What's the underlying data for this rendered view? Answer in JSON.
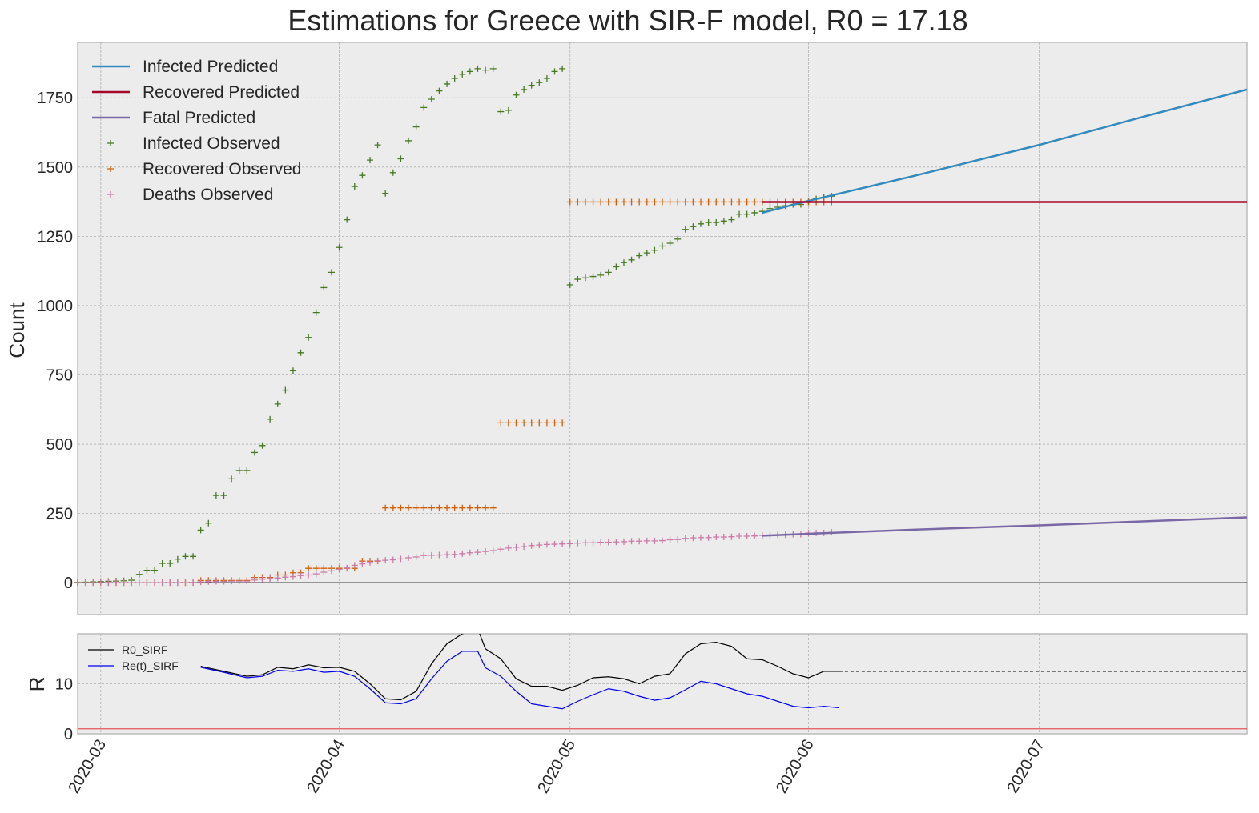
{
  "chart_data": [
    {
      "type": "line",
      "title": "Estimations for Greece with SIR-F model, R0 = 17.18",
      "xlabel": "",
      "ylabel": "Count",
      "xlim": [
        "2020-02-27",
        "2020-07-28"
      ],
      "ylim": [
        -115,
        1950
      ],
      "grid": true,
      "legend_position": "top-left",
      "yticks": [
        "0",
        "250",
        "500",
        "750",
        "1000",
        "1250",
        "1500",
        "1750"
      ],
      "xticks": [
        "2020-03",
        "2020-04",
        "2020-05",
        "2020-06",
        "2020-07"
      ],
      "colors": {
        "infected_pred": "#348abd",
        "recovered_pred": "#a60628",
        "fatal_pred": "#7a68a6",
        "infected_obs": "#467821",
        "recovered_obs": "#d55e00",
        "deaths_obs": "#cc79a7",
        "background": "#ececec",
        "grid": "#b0b0b0"
      },
      "legend": [
        "Infected Predicted",
        "Recovered Predicted",
        "Fatal Predicted",
        "Infected Observed",
        "Recovered Observed",
        "Deaths Observed"
      ],
      "series": [
        {
          "name": "Infected Predicted",
          "style": "line",
          "x": [
            "2020-05-26",
            "2020-06-01",
            "2020-06-15",
            "2020-07-01",
            "2020-07-15",
            "2020-07-28"
          ],
          "y": [
            1335,
            1378,
            1470,
            1580,
            1685,
            1780
          ]
        },
        {
          "name": "Recovered Predicted",
          "style": "line",
          "x": [
            "2020-05-26",
            "2020-07-28"
          ],
          "y": [
            1374,
            1374
          ]
        },
        {
          "name": "Fatal Predicted",
          "style": "line",
          "x": [
            "2020-05-26",
            "2020-06-15",
            "2020-07-01",
            "2020-07-28"
          ],
          "y": [
            170,
            192,
            207,
            236
          ]
        },
        {
          "name": "Infected Observed",
          "style": "marker",
          "x": [
            "2020-02-27",
            "2020-02-28",
            "2020-02-29",
            "2020-03-01",
            "2020-03-02",
            "2020-03-03",
            "2020-03-04",
            "2020-03-05",
            "2020-03-06",
            "2020-03-07",
            "2020-03-08",
            "2020-03-09",
            "2020-03-10",
            "2020-03-11",
            "2020-03-12",
            "2020-03-13",
            "2020-03-14",
            "2020-03-15",
            "2020-03-16",
            "2020-03-17",
            "2020-03-18",
            "2020-03-19",
            "2020-03-20",
            "2020-03-21",
            "2020-03-22",
            "2020-03-23",
            "2020-03-24",
            "2020-03-25",
            "2020-03-26",
            "2020-03-27",
            "2020-03-28",
            "2020-03-29",
            "2020-03-30",
            "2020-03-31",
            "2020-04-01",
            "2020-04-02",
            "2020-04-03",
            "2020-04-04",
            "2020-04-05",
            "2020-04-06",
            "2020-04-07",
            "2020-04-08",
            "2020-04-09",
            "2020-04-10",
            "2020-04-11",
            "2020-04-12",
            "2020-04-13",
            "2020-04-14",
            "2020-04-15",
            "2020-04-16",
            "2020-04-17",
            "2020-04-18",
            "2020-04-19",
            "2020-04-20",
            "2020-04-21",
            "2020-04-22",
            "2020-04-23",
            "2020-04-24",
            "2020-04-25",
            "2020-04-26",
            "2020-04-27",
            "2020-04-28",
            "2020-04-29",
            "2020-04-30",
            "2020-05-01",
            "2020-05-02",
            "2020-05-03",
            "2020-05-04",
            "2020-05-05",
            "2020-05-06",
            "2020-05-07",
            "2020-05-08",
            "2020-05-09",
            "2020-05-10",
            "2020-05-11",
            "2020-05-12",
            "2020-05-13",
            "2020-05-14",
            "2020-05-15",
            "2020-05-16",
            "2020-05-17",
            "2020-05-18",
            "2020-05-19",
            "2020-05-20",
            "2020-05-21",
            "2020-05-22",
            "2020-05-23",
            "2020-05-24",
            "2020-05-25",
            "2020-05-26",
            "2020-05-27",
            "2020-05-28",
            "2020-05-29",
            "2020-05-30",
            "2020-05-31",
            "2020-06-01",
            "2020-06-02",
            "2020-06-03",
            "2020-06-04"
          ],
          "y": [
            1,
            2,
            3,
            4,
            5,
            6,
            7,
            9,
            30,
            45,
            45,
            70,
            70,
            85,
            95,
            95,
            190,
            215,
            315,
            315,
            375,
            405,
            405,
            470,
            495,
            590,
            645,
            695,
            765,
            830,
            885,
            975,
            1065,
            1120,
            1210,
            1310,
            1430,
            1470,
            1525,
            1580,
            1405,
            1480,
            1530,
            1595,
            1645,
            1715,
            1745,
            1775,
            1800,
            1820,
            1835,
            1845,
            1855,
            1850,
            1855,
            1700,
            1705,
            1760,
            1780,
            1795,
            1805,
            1820,
            1845,
            1855,
            1075,
            1095,
            1100,
            1105,
            1110,
            1120,
            1140,
            1155,
            1165,
            1180,
            1190,
            1200,
            1215,
            1225,
            1240,
            1275,
            1285,
            1295,
            1300,
            1300,
            1305,
            1310,
            1330,
            1330,
            1335,
            1340,
            1350,
            1355,
            1360,
            1365,
            1365,
            1375,
            1385,
            1390,
            1395
          ]
        },
        {
          "name": "Recovered Observed",
          "style": "marker",
          "x": [
            "2020-02-27",
            "2020-02-28",
            "2020-02-29",
            "2020-03-01",
            "2020-03-02",
            "2020-03-03",
            "2020-03-04",
            "2020-03-05",
            "2020-03-06",
            "2020-03-07",
            "2020-03-08",
            "2020-03-09",
            "2020-03-10",
            "2020-03-11",
            "2020-03-12",
            "2020-03-13",
            "2020-03-14",
            "2020-03-15",
            "2020-03-16",
            "2020-03-17",
            "2020-03-18",
            "2020-03-19",
            "2020-03-20",
            "2020-03-21",
            "2020-03-22",
            "2020-03-23",
            "2020-03-24",
            "2020-03-25",
            "2020-03-26",
            "2020-03-27",
            "2020-03-28",
            "2020-03-29",
            "2020-03-30",
            "2020-03-31",
            "2020-04-01",
            "2020-04-02",
            "2020-04-03",
            "2020-04-04",
            "2020-04-05",
            "2020-04-06",
            "2020-04-07",
            "2020-04-08",
            "2020-04-09",
            "2020-04-10",
            "2020-04-11",
            "2020-04-12",
            "2020-04-13",
            "2020-04-14",
            "2020-04-15",
            "2020-04-16",
            "2020-04-17",
            "2020-04-18",
            "2020-04-19",
            "2020-04-20",
            "2020-04-21",
            "2020-04-22",
            "2020-04-23",
            "2020-04-24",
            "2020-04-25",
            "2020-04-26",
            "2020-04-27",
            "2020-04-28",
            "2020-04-29",
            "2020-04-30",
            "2020-05-01",
            "2020-05-02",
            "2020-05-03",
            "2020-05-04",
            "2020-05-05",
            "2020-05-06",
            "2020-05-07",
            "2020-05-08",
            "2020-05-09",
            "2020-05-10",
            "2020-05-11",
            "2020-05-12",
            "2020-05-13",
            "2020-05-14",
            "2020-05-15",
            "2020-05-16",
            "2020-05-17",
            "2020-05-18",
            "2020-05-19",
            "2020-05-20",
            "2020-05-21",
            "2020-05-22",
            "2020-05-23",
            "2020-05-24",
            "2020-05-25",
            "2020-05-26",
            "2020-05-27",
            "2020-05-28",
            "2020-05-29",
            "2020-05-30",
            "2020-05-31",
            "2020-06-01",
            "2020-06-02",
            "2020-06-03",
            "2020-06-04"
          ],
          "y": [
            0,
            0,
            0,
            0,
            0,
            0,
            0,
            0,
            0,
            0,
            0,
            0,
            0,
            0,
            0,
            0,
            8,
            8,
            8,
            8,
            8,
            8,
            8,
            19,
            19,
            19,
            28,
            28,
            36,
            36,
            52,
            52,
            52,
            52,
            52,
            52,
            52,
            78,
            78,
            78,
            270,
            270,
            270,
            270,
            270,
            270,
            270,
            270,
            270,
            270,
            270,
            270,
            270,
            270,
            270,
            577,
            577,
            577,
            577,
            577,
            577,
            577,
            577,
            577,
            1374,
            1374,
            1374,
            1374,
            1374,
            1374,
            1374,
            1374,
            1374,
            1374,
            1374,
            1374,
            1374,
            1374,
            1374,
            1374,
            1374,
            1374,
            1374,
            1374,
            1374,
            1374,
            1374,
            1374,
            1374,
            1374,
            1374,
            1374,
            1374,
            1374,
            1374,
            1374,
            1374,
            1374,
            1374
          ]
        },
        {
          "name": "Deaths Observed",
          "style": "marker",
          "x": [
            "2020-02-27",
            "2020-02-28",
            "2020-02-29",
            "2020-03-01",
            "2020-03-02",
            "2020-03-03",
            "2020-03-04",
            "2020-03-05",
            "2020-03-06",
            "2020-03-07",
            "2020-03-08",
            "2020-03-09",
            "2020-03-10",
            "2020-03-11",
            "2020-03-12",
            "2020-03-13",
            "2020-03-14",
            "2020-03-15",
            "2020-03-16",
            "2020-03-17",
            "2020-03-18",
            "2020-03-19",
            "2020-03-20",
            "2020-03-21",
            "2020-03-22",
            "2020-03-23",
            "2020-03-24",
            "2020-03-25",
            "2020-03-26",
            "2020-03-27",
            "2020-03-28",
            "2020-03-29",
            "2020-03-30",
            "2020-03-31",
            "2020-04-01",
            "2020-04-02",
            "2020-04-03",
            "2020-04-04",
            "2020-04-05",
            "2020-04-06",
            "2020-04-07",
            "2020-04-08",
            "2020-04-09",
            "2020-04-10",
            "2020-04-11",
            "2020-04-12",
            "2020-04-13",
            "2020-04-14",
            "2020-04-15",
            "2020-04-16",
            "2020-04-17",
            "2020-04-18",
            "2020-04-19",
            "2020-04-20",
            "2020-04-21",
            "2020-04-22",
            "2020-04-23",
            "2020-04-24",
            "2020-04-25",
            "2020-04-26",
            "2020-04-27",
            "2020-04-28",
            "2020-04-29",
            "2020-04-30",
            "2020-05-01",
            "2020-05-02",
            "2020-05-03",
            "2020-05-04",
            "2020-05-05",
            "2020-05-06",
            "2020-05-07",
            "2020-05-08",
            "2020-05-09",
            "2020-05-10",
            "2020-05-11",
            "2020-05-12",
            "2020-05-13",
            "2020-05-14",
            "2020-05-15",
            "2020-05-16",
            "2020-05-17",
            "2020-05-18",
            "2020-05-19",
            "2020-05-20",
            "2020-05-21",
            "2020-05-22",
            "2020-05-23",
            "2020-05-24",
            "2020-05-25",
            "2020-05-26",
            "2020-05-27",
            "2020-05-28",
            "2020-05-29",
            "2020-05-30",
            "2020-05-31",
            "2020-06-01",
            "2020-06-02",
            "2020-06-03",
            "2020-06-04"
          ],
          "y": [
            0,
            0,
            0,
            0,
            0,
            0,
            0,
            0,
            0,
            0,
            0,
            0,
            0,
            0,
            0,
            1,
            3,
            4,
            5,
            5,
            6,
            6,
            6,
            10,
            13,
            15,
            17,
            20,
            22,
            26,
            28,
            32,
            38,
            43,
            49,
            53,
            63,
            68,
            73,
            79,
            81,
            83,
            86,
            90,
            93,
            98,
            99,
            100,
            101,
            102,
            105,
            108,
            110,
            113,
            116,
            121,
            125,
            128,
            130,
            134,
            136,
            138,
            139,
            140,
            141,
            143,
            144,
            144,
            146,
            146,
            147,
            148,
            150,
            150,
            151,
            151,
            152,
            155,
            156,
            160,
            162,
            163,
            163,
            165,
            165,
            166,
            168,
            168,
            169,
            171,
            172,
            173,
            173,
            175,
            175,
            179,
            180,
            180,
            182
          ]
        }
      ]
    },
    {
      "type": "line",
      "title": "",
      "xlabel": "",
      "ylabel": "R",
      "ylim": [
        0,
        20
      ],
      "yticks": [
        "0",
        "10"
      ],
      "grid": true,
      "legend_position": "top-left",
      "legend": [
        "R0_SIRF",
        "Re(t)_SIRF"
      ],
      "threshold": {
        "value": 1,
        "color": "#e8555e"
      },
      "series": [
        {
          "name": "R0_SIRF",
          "color": "#000000",
          "x": [
            "2020-03-14",
            "2020-03-17",
            "2020-03-20",
            "2020-03-22",
            "2020-03-24",
            "2020-03-26",
            "2020-03-28",
            "2020-03-30",
            "2020-04-01",
            "2020-04-03",
            "2020-04-05",
            "2020-04-07",
            "2020-04-09",
            "2020-04-11",
            "2020-04-13",
            "2020-04-15",
            "2020-04-17",
            "2020-04-19",
            "2020-04-20",
            "2020-04-22",
            "2020-04-24",
            "2020-04-26",
            "2020-04-28",
            "2020-04-30",
            "2020-05-02",
            "2020-05-04",
            "2020-05-06",
            "2020-05-08",
            "2020-05-10",
            "2020-05-12",
            "2020-05-14",
            "2020-05-16",
            "2020-05-18",
            "2020-05-20",
            "2020-05-22",
            "2020-05-24",
            "2020-05-26",
            "2020-05-28",
            "2020-05-30",
            "2020-06-01",
            "2020-06-03",
            "2020-06-05"
          ],
          "y": [
            13.5,
            12.5,
            11.5,
            11.8,
            13.3,
            13.0,
            13.8,
            13.2,
            13.3,
            12.5,
            10.0,
            7.0,
            6.8,
            8.5,
            14.0,
            18.0,
            20.0,
            21.0,
            17.0,
            15.0,
            11.0,
            9.5,
            9.5,
            8.7,
            9.7,
            11.2,
            11.4,
            11.0,
            10.0,
            11.5,
            12.0,
            16.0,
            18.0,
            18.3,
            17.5,
            15.0,
            14.8,
            13.5,
            12.0,
            11.2,
            12.5,
            12.5
          ]
        },
        {
          "name": "R0_SIRF (projected)",
          "color": "#000000",
          "dashed": true,
          "x": [
            "2020-06-05",
            "2020-07-28"
          ],
          "y": [
            12.5,
            12.5
          ]
        },
        {
          "name": "Re(t)_SIRF",
          "color": "#0000ee",
          "x": [
            "2020-03-14",
            "2020-03-17",
            "2020-03-20",
            "2020-03-22",
            "2020-03-24",
            "2020-03-26",
            "2020-03-28",
            "2020-03-30",
            "2020-04-01",
            "2020-04-03",
            "2020-04-05",
            "2020-04-07",
            "2020-04-09",
            "2020-04-11",
            "2020-04-13",
            "2020-04-15",
            "2020-04-17",
            "2020-04-19",
            "2020-04-20",
            "2020-04-22",
            "2020-04-24",
            "2020-04-26",
            "2020-04-28",
            "2020-04-30",
            "2020-05-02",
            "2020-05-04",
            "2020-05-06",
            "2020-05-08",
            "2020-05-10",
            "2020-05-12",
            "2020-05-14",
            "2020-05-16",
            "2020-05-18",
            "2020-05-20",
            "2020-05-22",
            "2020-05-24",
            "2020-05-26",
            "2020-05-28",
            "2020-05-30",
            "2020-06-01",
            "2020-06-03",
            "2020-06-05"
          ],
          "y": [
            13.3,
            12.3,
            11.2,
            11.5,
            12.7,
            12.5,
            13.0,
            12.3,
            12.5,
            11.5,
            9.0,
            6.2,
            6.0,
            7.0,
            11.0,
            14.5,
            16.5,
            16.5,
            13.2,
            11.5,
            8.5,
            6.0,
            5.5,
            5.0,
            6.5,
            7.8,
            9.0,
            8.5,
            7.5,
            6.7,
            7.2,
            8.8,
            10.5,
            10.0,
            9.0,
            8.0,
            7.5,
            6.5,
            5.5,
            5.2,
            5.5,
            5.2
          ]
        }
      ]
    }
  ]
}
